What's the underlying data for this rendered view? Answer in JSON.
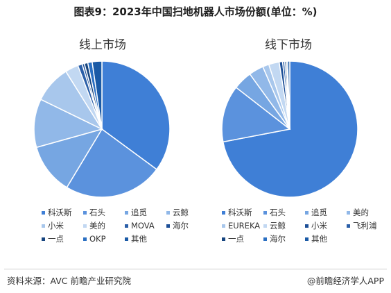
{
  "title": "图表9：2023年中国扫地机器人市场份额(单位：%)",
  "source": "资料来源：AVC 前瞻产业研究院",
  "credit": "@前瞻经济学人APP",
  "chart_data": [
    {
      "type": "pie",
      "title": "线上市场",
      "legend_placement": "bottom",
      "slices": [
        {
          "name": "科沃斯",
          "value": 33.5,
          "color": "#3f7fd6"
        },
        {
          "name": "石头",
          "value": 22.5,
          "color": "#5b92dd"
        },
        {
          "name": "追觅",
          "value": 11.5,
          "color": "#76a6e2"
        },
        {
          "name": "云鲸",
          "value": 11.0,
          "color": "#91b8e8"
        },
        {
          "name": "小米",
          "value": 8.5,
          "color": "#a8c7ec"
        },
        {
          "name": "美的",
          "value": 3.0,
          "color": "#c2d8f2"
        },
        {
          "name": "MOVA",
          "value": 1.0,
          "color": "#2b5fa8"
        },
        {
          "name": "海尔",
          "value": 0.5,
          "color": "#1d4f97"
        },
        {
          "name": "一点",
          "value": 0.8,
          "color": "#17457f"
        },
        {
          "name": "OKP",
          "value": 1.0,
          "color": "#2a6fc2"
        },
        {
          "name": "其他",
          "value": 2.2,
          "color": "#1a5aa6"
        }
      ]
    },
    {
      "type": "pie",
      "title": "线下市场",
      "legend_placement": "bottom",
      "slices": [
        {
          "name": "科沃斯",
          "value": 72.0,
          "color": "#3f7fd6"
        },
        {
          "name": "石头",
          "value": 13.5,
          "color": "#5b92dd"
        },
        {
          "name": "追觅",
          "value": 4.5,
          "color": "#76a6e2"
        },
        {
          "name": "美的",
          "value": 3.5,
          "color": "#91b8e8"
        },
        {
          "name": "EUREKA",
          "value": 1.5,
          "color": "#a8c7ec"
        },
        {
          "name": "云鲸",
          "value": 2.5,
          "color": "#c2d8f2"
        },
        {
          "name": "小米",
          "value": 0.8,
          "color": "#1d4f97"
        },
        {
          "name": "飞利浦",
          "value": 0.5,
          "color": "#2b5fa8"
        },
        {
          "name": "一点",
          "value": 0.4,
          "color": "#17457f"
        },
        {
          "name": "海尔",
          "value": 0.3,
          "color": "#2a6fc2"
        },
        {
          "name": "其他",
          "value": 0.5,
          "color": "#1a5aa6"
        }
      ]
    }
  ]
}
